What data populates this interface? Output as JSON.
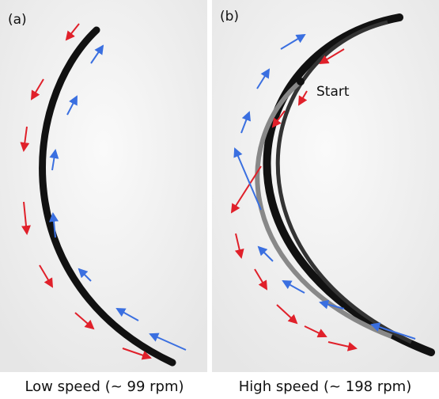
{
  "panels": [
    {
      "label": "(a)",
      "caption": "Low speed (~ 99 rpm)"
    },
    {
      "label": "(b)",
      "caption": "High speed (~ 198 rpm)",
      "marker": "Start"
    }
  ]
}
